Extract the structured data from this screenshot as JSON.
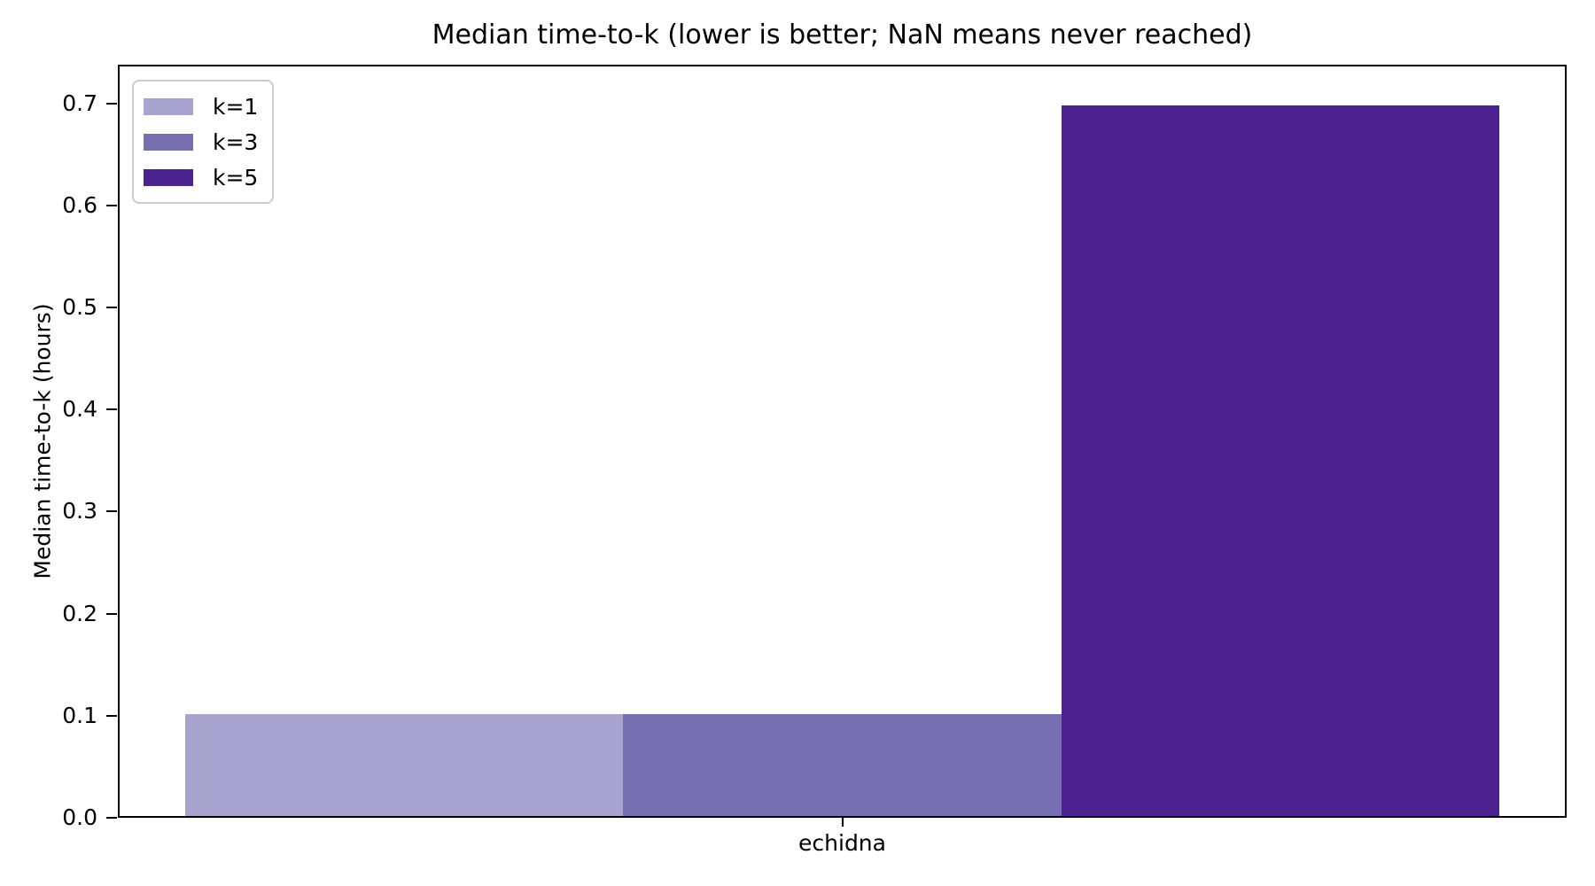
{
  "chart_data": {
    "type": "bar",
    "title": "Median time-to-k (lower is better; NaN means never reached)",
    "xlabel": "",
    "ylabel": "Median time-to-k (hours)",
    "categories": [
      "echidna"
    ],
    "series": [
      {
        "name": "k=1",
        "values": [
          0.1
        ],
        "color": "#a9a3d0"
      },
      {
        "name": "k=3",
        "values": [
          0.1
        ],
        "color": "#756fb2"
      },
      {
        "name": "k=5",
        "values": [
          0.7
        ],
        "color": "#4c2190"
      }
    ],
    "ylim": [
      0.0,
      0.7
    ],
    "yticks": [
      0.0,
      0.1,
      0.2,
      0.3,
      0.4,
      0.5,
      0.6,
      0.7
    ],
    "ytick_labels": [
      "0.0",
      "0.1",
      "0.2",
      "0.3",
      "0.4",
      "0.5",
      "0.6",
      "0.7"
    ],
    "grid": false,
    "legend": {
      "position": "upper left",
      "entries": [
        "k=1",
        "k=3",
        "k=5"
      ]
    }
  },
  "colors": {
    "background": "#ffffff",
    "axis": "#000000",
    "text": "#000000",
    "legend_border": "#cccccc"
  }
}
